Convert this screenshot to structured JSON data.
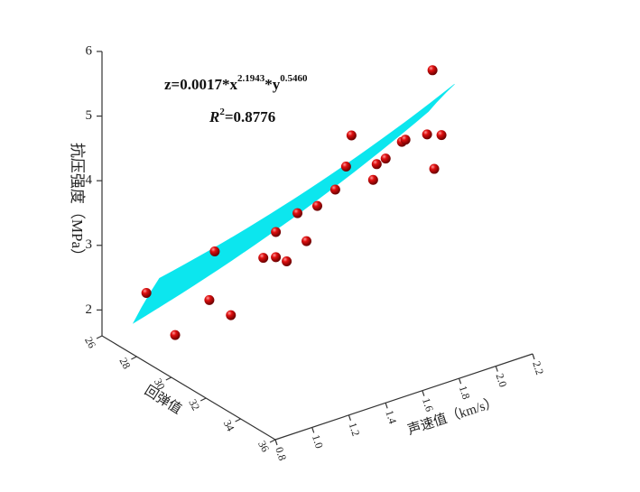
{
  "chart_data": {
    "type": "scatter3d",
    "equation": [
      "z=0.0017*x",
      "2.1943",
      "*y",
      "0.5460"
    ],
    "r2": [
      "R",
      "2",
      "=0.8776"
    ],
    "zlabel": "抗压强度（MPa）",
    "xlabel": "回弹值",
    "ylabel": "声速值（km/s）",
    "x": [
      27.5,
      28.1,
      28.8,
      28.9,
      29.3,
      30.2,
      30.2,
      30.4,
      30.6,
      30.8,
      31.0,
      31.4,
      31.6,
      31.7,
      32.1,
      32.2,
      32.4,
      32.7,
      32.8,
      33.2,
      33.3,
      33.4,
      33.5,
      29.9
    ],
    "y": [
      0.9,
      1.0,
      1.12,
      1.14,
      1.19,
      1.35,
      1.35,
      1.39,
      1.43,
      1.46,
      1.5,
      1.56,
      1.6,
      1.62,
      1.7,
      1.71,
      1.74,
      1.8,
      1.81,
      1.89,
      1.91,
      1.91,
      1.94,
      1.31
    ],
    "z": [
      2.41,
      1.76,
      2.3,
      3.05,
      2.08,
      3.36,
      2.97,
      2.9,
      3.64,
      3.21,
      3.75,
      4.01,
      4.36,
      4.84,
      4.14,
      4.39,
      4.48,
      4.73,
      4.77,
      4.84,
      5.83,
      4.32,
      4.83,
      2.95
    ],
    "color": "#c00000",
    "surface_color": "#00e5ee",
    "xlim": [
      26,
      36
    ],
    "xticks": [
      26,
      28,
      30,
      32,
      34,
      36
    ],
    "ylim": [
      0.8,
      2.2
    ],
    "yticks": [
      0.8,
      {
        "value": 1,
        "label": "1.0"
      },
      1.2,
      1.4,
      1.6,
      1.8,
      {
        "value": 2,
        "label": "2.0"
      },
      2.2
    ],
    "zlim": [
      1.6,
      6
    ],
    "zticks": [
      2,
      3,
      4,
      5,
      6
    ]
  }
}
